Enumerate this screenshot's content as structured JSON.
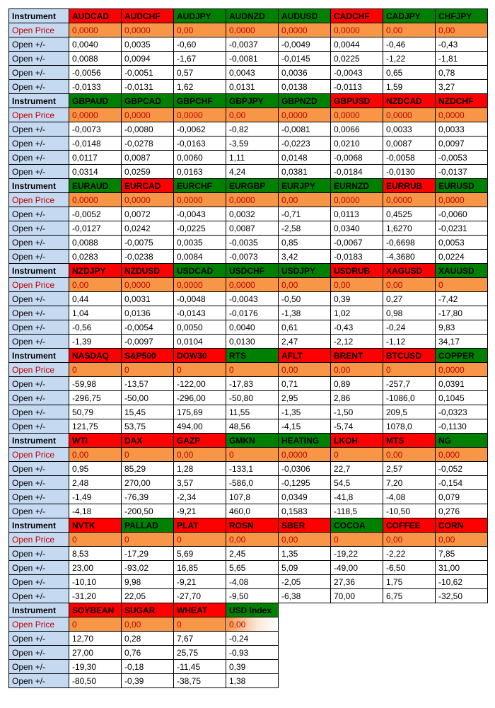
{
  "labels": {
    "instrument": "Instrument",
    "open_price": "Open Price",
    "open_pm": "Open +/-"
  },
  "colors": {
    "label_bg": "#c5d9f1",
    "red_hdr": "#ff0000",
    "green_hdr": "#008000",
    "orange": "#f79646",
    "open_price_text": "#c00000"
  },
  "fontsize": 12,
  "blocks": [
    {
      "headers": [
        {
          "t": "AUDCAD",
          "c": "red"
        },
        {
          "t": "AUDCHF",
          "c": "red"
        },
        {
          "t": "AUDJPY",
          "c": "green"
        },
        {
          "t": "AUDNZD",
          "c": "green"
        },
        {
          "t": "AUDUSD",
          "c": "green"
        },
        {
          "t": "CADCHF",
          "c": "red"
        },
        {
          "t": "CADJPY",
          "c": "green"
        },
        {
          "t": "CHFJPY",
          "c": "green"
        }
      ],
      "open_price": [
        "0,0000",
        "0,0000",
        "0,00",
        "0,0000",
        "0,0000",
        "0,0000",
        "0,00",
        "0,00"
      ],
      "rows": [
        [
          "0,0040",
          "0,0035",
          "-0,60",
          "-0,0037",
          "-0,0049",
          "0,0044",
          "-0,46",
          "-0,43"
        ],
        [
          "0,0088",
          "0,0094",
          "-1,67",
          "-0,0081",
          "-0,0145",
          "0,0225",
          "-1,22",
          "-1,81"
        ],
        [
          "-0,0056",
          "-0,0051",
          "0,57",
          "0,0043",
          "0,0036",
          "-0,0043",
          "0,65",
          "0,78"
        ],
        [
          "-0,0133",
          "-0,0131",
          "1,62",
          "0,0131",
          "0,0138",
          "-0,0113",
          "1,59",
          "3,27"
        ]
      ]
    },
    {
      "headers": [
        {
          "t": "GBPAUD",
          "c": "green"
        },
        {
          "t": "GBPCAD",
          "c": "green"
        },
        {
          "t": "GBPCHF",
          "c": "green"
        },
        {
          "t": "GBPJPY",
          "c": "green"
        },
        {
          "t": "GBPNZD",
          "c": "green"
        },
        {
          "t": "GBPUSD",
          "c": "red"
        },
        {
          "t": "NZDCAD",
          "c": "red"
        },
        {
          "t": "NZDCHF",
          "c": "red"
        }
      ],
      "open_price": [
        "0,0000",
        "0,0000",
        "0,0000",
        "0,00",
        "0,0000",
        "0,0000",
        "0,0000",
        "0,0000"
      ],
      "rows": [
        [
          "-0,0073",
          "-0,0080",
          "-0,0062",
          "-0,82",
          "-0,0081",
          "0,0066",
          "0,0033",
          "0,0033"
        ],
        [
          "-0,0148",
          "-0,0278",
          "-0,0163",
          "-3,59",
          "-0,0223",
          "0,0210",
          "0,0087",
          "0,0097"
        ],
        [
          "0,0117",
          "0,0087",
          "0,0060",
          "1,11",
          "0,0148",
          "-0,0068",
          "-0,0058",
          "-0,0053"
        ],
        [
          "0,0314",
          "0,0259",
          "0,0163",
          "4,24",
          "0,0381",
          "-0,0184",
          "-0,0130",
          "-0,0137"
        ]
      ]
    },
    {
      "headers": [
        {
          "t": "EURAUD",
          "c": "green"
        },
        {
          "t": "EURCAD",
          "c": "red"
        },
        {
          "t": "EURCHF",
          "c": "green"
        },
        {
          "t": "EURGBP",
          "c": "green"
        },
        {
          "t": "EURJPY",
          "c": "green"
        },
        {
          "t": "EURNZD",
          "c": "green"
        },
        {
          "t": "EURRUB",
          "c": "red"
        },
        {
          "t": "EURUSD",
          "c": "green"
        }
      ],
      "open_price": [
        "0,0000",
        "0,0000",
        "0,0000",
        "0,0000",
        "0,00",
        "0,0000",
        "0,0000",
        "0,0000"
      ],
      "rows": [
        [
          "-0,0052",
          "0,0072",
          "-0,0043",
          "0,0032",
          "-0,71",
          "0,0113",
          "0,4525",
          "-0,0060"
        ],
        [
          "-0,0127",
          "0,0242",
          "-0,0225",
          "0,0087",
          "-2,58",
          "0,0340",
          "1,6270",
          "-0,0231"
        ],
        [
          "0,0088",
          "-0,0075",
          "0,0035",
          "-0,0035",
          "0,85",
          "-0,0067",
          "-0,6698",
          "0,0053"
        ],
        [
          "0,0283",
          "-0,0238",
          "0,0084",
          "-0,0073",
          "3,42",
          "-0,0183",
          "-4,3680",
          "0,0224"
        ]
      ]
    },
    {
      "headers": [
        {
          "t": "NZDJPY",
          "c": "red"
        },
        {
          "t": "NZDUSD",
          "c": "red"
        },
        {
          "t": "USDCAD",
          "c": "green"
        },
        {
          "t": "USDCHF",
          "c": "green"
        },
        {
          "t": "USDJPY",
          "c": "green"
        },
        {
          "t": "USDRUB",
          "c": "red"
        },
        {
          "t": "XAGUSD",
          "c": "red"
        },
        {
          "t": "XAUUSD",
          "c": "green"
        }
      ],
      "open_price": [
        "0,00",
        "0,0000",
        "0,0000",
        "0,0000",
        "0,00",
        "0,00",
        "0,00",
        "0"
      ],
      "rows": [
        [
          "0,44",
          "0,0031",
          "-0,0048",
          "-0,0043",
          "-0,50",
          "0,39",
          "0,27",
          "-7,42"
        ],
        [
          "1,04",
          "0,0136",
          "-0,0143",
          "-0,0176",
          "-1,38",
          "1,02",
          "0,98",
          "-17,80"
        ],
        [
          "-0,56",
          "-0,0054",
          "0,0050",
          "0,0040",
          "0,61",
          "-0,43",
          "-0,24",
          "9,83"
        ],
        [
          "-1,39",
          "-0,0097",
          "0,0104",
          "0,0130",
          "2,47",
          "-2,12",
          "-1,12",
          "34,17"
        ]
      ]
    },
    {
      "headers": [
        {
          "t": "NASDAQ",
          "c": "red"
        },
        {
          "t": "S&P500",
          "c": "red"
        },
        {
          "t": "DOW30",
          "c": "red"
        },
        {
          "t": "RTS",
          "c": "green"
        },
        {
          "t": "AFLT",
          "c": "red"
        },
        {
          "t": "BRENT",
          "c": "red"
        },
        {
          "t": "BTCUSD",
          "c": "red"
        },
        {
          "t": "COPPER",
          "c": "green"
        }
      ],
      "open_price": [
        "0",
        "0",
        "0",
        "0",
        "0,00",
        "0,00",
        "0",
        "0,0000"
      ],
      "rows": [
        [
          "-59,98",
          "-13,57",
          "-122,00",
          "-17,83",
          "0,71",
          "0,89",
          "-257,7",
          "0,0391"
        ],
        [
          "-296,75",
          "-50,00",
          "-296,00",
          "-50,80",
          "2,95",
          "2,86",
          "-1086,0",
          "0,1045"
        ],
        [
          "50,79",
          "15,45",
          "175,69",
          "11,55",
          "-1,35",
          "-1,50",
          "209,5",
          "-0,0323"
        ],
        [
          "121,75",
          "53,75",
          "494,00",
          "48,56",
          "-4,15",
          "-5,74",
          "1078,0",
          "-0,1130"
        ]
      ]
    },
    {
      "headers": [
        {
          "t": "WTI",
          "c": "red"
        },
        {
          "t": "DAX",
          "c": "red"
        },
        {
          "t": "GAZP",
          "c": "red"
        },
        {
          "t": "GMKN",
          "c": "green"
        },
        {
          "t": "HEATING",
          "c": "green"
        },
        {
          "t": "LKOH",
          "c": "red"
        },
        {
          "t": "MTS",
          "c": "red"
        },
        {
          "t": "NG",
          "c": "green"
        }
      ],
      "open_price": [
        "0,00",
        "0",
        "0,00",
        "0",
        "0,0000",
        "0",
        "0,00",
        "0,000"
      ],
      "rows": [
        [
          "0,95",
          "85,29",
          "1,28",
          "-133,1",
          "-0,0306",
          "22,7",
          "2,57",
          "-0,052"
        ],
        [
          "2,48",
          "270,00",
          "3,57",
          "-586,0",
          "-0,1295",
          "54,5",
          "7,20",
          "-0,154"
        ],
        [
          "-1,49",
          "-76,39",
          "-2,34",
          "107,8",
          "0,0349",
          "-41,8",
          "-4,08",
          "0,079"
        ],
        [
          "-4,18",
          "-200,50",
          "-9,21",
          "460,0",
          "0,1583",
          "-118,5",
          "-10,50",
          "0,276"
        ]
      ]
    },
    {
      "headers": [
        {
          "t": "NVTK",
          "c": "red"
        },
        {
          "t": "PALLAD",
          "c": "green"
        },
        {
          "t": "PLAT",
          "c": "red"
        },
        {
          "t": "ROSN",
          "c": "red"
        },
        {
          "t": "SBER",
          "c": "red"
        },
        {
          "t": "COCOA",
          "c": "green"
        },
        {
          "t": "COFFEE",
          "c": "red"
        },
        {
          "t": "CORN",
          "c": "red"
        }
      ],
      "open_price": [
        "0",
        "0",
        "0",
        "0,00",
        "0,00",
        "0",
        "0,00",
        "0,00"
      ],
      "rows": [
        [
          "8,53",
          "-17,29",
          "5,69",
          "2,45",
          "1,35",
          "-19,22",
          "-2,22",
          "7,85"
        ],
        [
          "23,00",
          "-93,02",
          "16,85",
          "5,65",
          "5,09",
          "-49,00",
          "-6,50",
          "31,00"
        ],
        [
          "-10,10",
          "9,98",
          "-9,21",
          "-4,08",
          "-2,05",
          "27,36",
          "1,75",
          "-10,62"
        ],
        [
          "-31,20",
          "22,05",
          "-27,70",
          "-9,50",
          "-6,38",
          "70,00",
          "6,75",
          "-32,50"
        ]
      ]
    },
    {
      "headers": [
        {
          "t": "SOYBEAN",
          "c": "red"
        },
        {
          "t": "SUGAR",
          "c": "red"
        },
        {
          "t": "WHEAT",
          "c": "red"
        },
        {
          "t": "USD Index",
          "c": "green"
        }
      ],
      "open_price_fade": true,
      "open_price": [
        "0",
        "0,00",
        "0",
        "0,00"
      ],
      "rows": [
        [
          "12,70",
          "0,28",
          "7,67",
          "-0,24"
        ],
        [
          "27,00",
          "0,76",
          "25,75",
          "-0,93"
        ],
        [
          "-19,30",
          "-0,18",
          "-11,45",
          "0,39"
        ],
        [
          "-80,50",
          "-0,39",
          "-38,75",
          "1,38"
        ]
      ]
    }
  ]
}
